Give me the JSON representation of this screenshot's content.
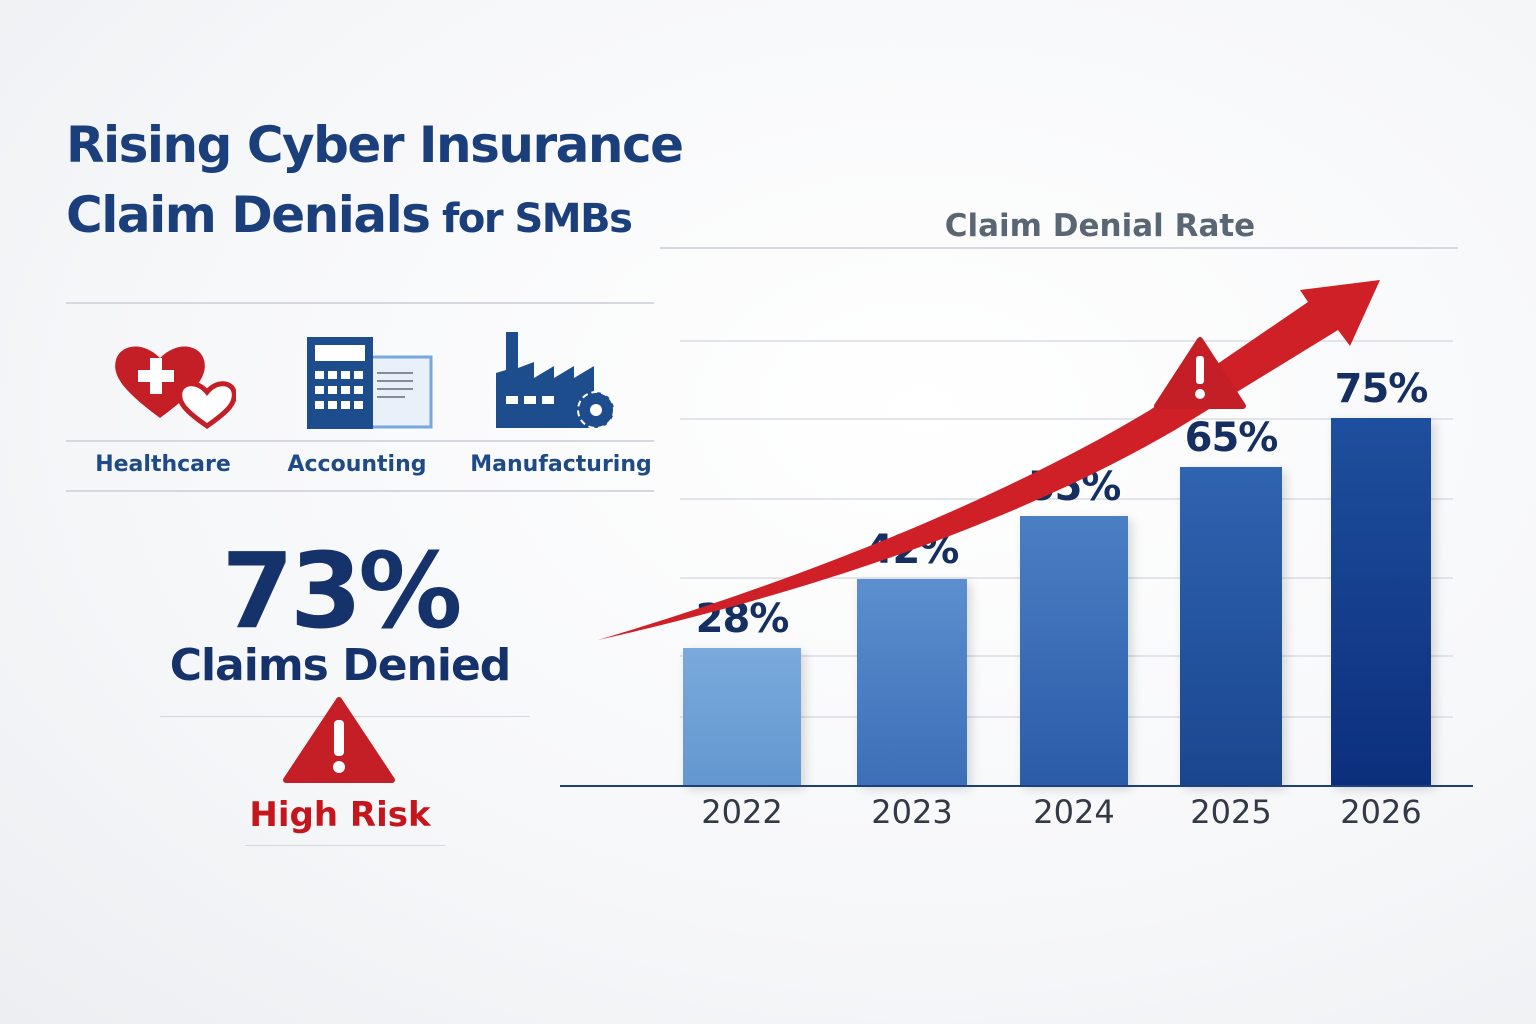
{
  "title": {
    "line1": "Rising Cyber Insurance",
    "line2_main": "Claim Denials",
    "line2_small": " for SMBs"
  },
  "industries": [
    {
      "label": "Healthcare",
      "icon": "heart-medical-icon"
    },
    {
      "label": "Accounting",
      "icon": "calculator-document-icon"
    },
    {
      "label": "Manufacturing",
      "icon": "factory-gear-icon"
    }
  ],
  "stat": {
    "value": "73%",
    "label": "Claims Denied",
    "risk": "High Risk"
  },
  "colors": {
    "primary": "#1b3f7a",
    "alert": "#c4161c",
    "bar_light": "#6fa3d9",
    "bar_dark": "#0c2f7c"
  },
  "chart_data": {
    "type": "bar",
    "title": "Claim Denial Rate",
    "categories": [
      "2022",
      "2023",
      "2024",
      "2025",
      "2026"
    ],
    "values": [
      28,
      42,
      55,
      65,
      75
    ],
    "labels": [
      "28%",
      "42%",
      "55%",
      "65%",
      "75%"
    ],
    "grid": true,
    "trend_arrow": true
  }
}
